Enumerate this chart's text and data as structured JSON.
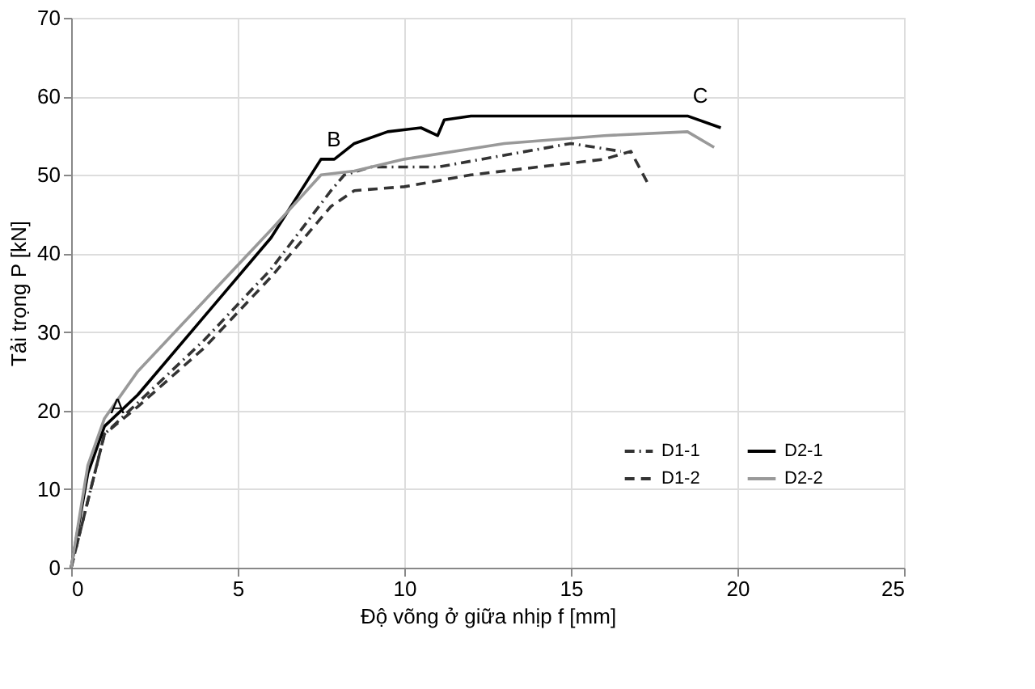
{
  "chart_data": {
    "type": "line",
    "xlabel": "Độ võng ở giữa nhịp  f [mm]",
    "ylabel": "Tải trọng P [kN]",
    "xlim": [
      0,
      25
    ],
    "xticks": [
      0,
      5,
      10,
      15,
      20,
      25
    ],
    "ylim": [
      0,
      70
    ],
    "yticks": [
      0,
      10,
      20,
      30,
      40,
      50,
      60,
      70
    ],
    "grid": true,
    "legend": "bottom right",
    "marker": "none",
    "series": [
      {
        "name": "D1-1",
        "color": "#333333",
        "line_style": "dotted",
        "x": [
          0,
          1,
          2,
          4,
          6,
          7.8,
          8.2,
          9,
          11,
          13,
          15,
          16.5
        ],
        "values": [
          0,
          17,
          21,
          29,
          38,
          48,
          50,
          51,
          51,
          52.5,
          54,
          53
        ]
      },
      {
        "name": "D1-2",
        "color": "#333333",
        "line_style": "dashed",
        "x": [
          0,
          1,
          2,
          4,
          6,
          7.8,
          8.5,
          10,
          12,
          14,
          16,
          16.8,
          17.3
        ],
        "values": [
          0,
          17,
          20.5,
          28,
          37,
          46,
          48,
          48.5,
          50,
          51,
          52,
          53,
          49
        ]
      },
      {
        "name": "D2-1",
        "color": "#000000",
        "line_style": "solid",
        "x": [
          0,
          0.5,
          1,
          2,
          4,
          6,
          7.5,
          7.9,
          8.5,
          9.5,
          10.5,
          11,
          11.2,
          12,
          18.5,
          19.5
        ],
        "values": [
          0,
          12,
          18,
          22,
          32,
          42,
          52,
          52,
          54,
          55.5,
          56,
          55,
          57,
          57.5,
          57.5,
          56
        ]
      },
      {
        "name": "D2-2",
        "color": "#999999",
        "line_style": "solid",
        "x": [
          0,
          0.5,
          1,
          2,
          4,
          6,
          7.5,
          8.5,
          10,
          13,
          16,
          18.5,
          19.3
        ],
        "values": [
          0,
          13,
          19,
          25,
          34,
          43,
          50,
          50.5,
          52,
          54,
          55,
          55.5,
          53.5
        ]
      }
    ],
    "annotations": [
      {
        "text": "A",
        "x": 1,
        "y": 18
      },
      {
        "text": "B",
        "x": 7.5,
        "y": 52
      },
      {
        "text": "C",
        "x": 18.5,
        "y": 57.5
      }
    ]
  }
}
